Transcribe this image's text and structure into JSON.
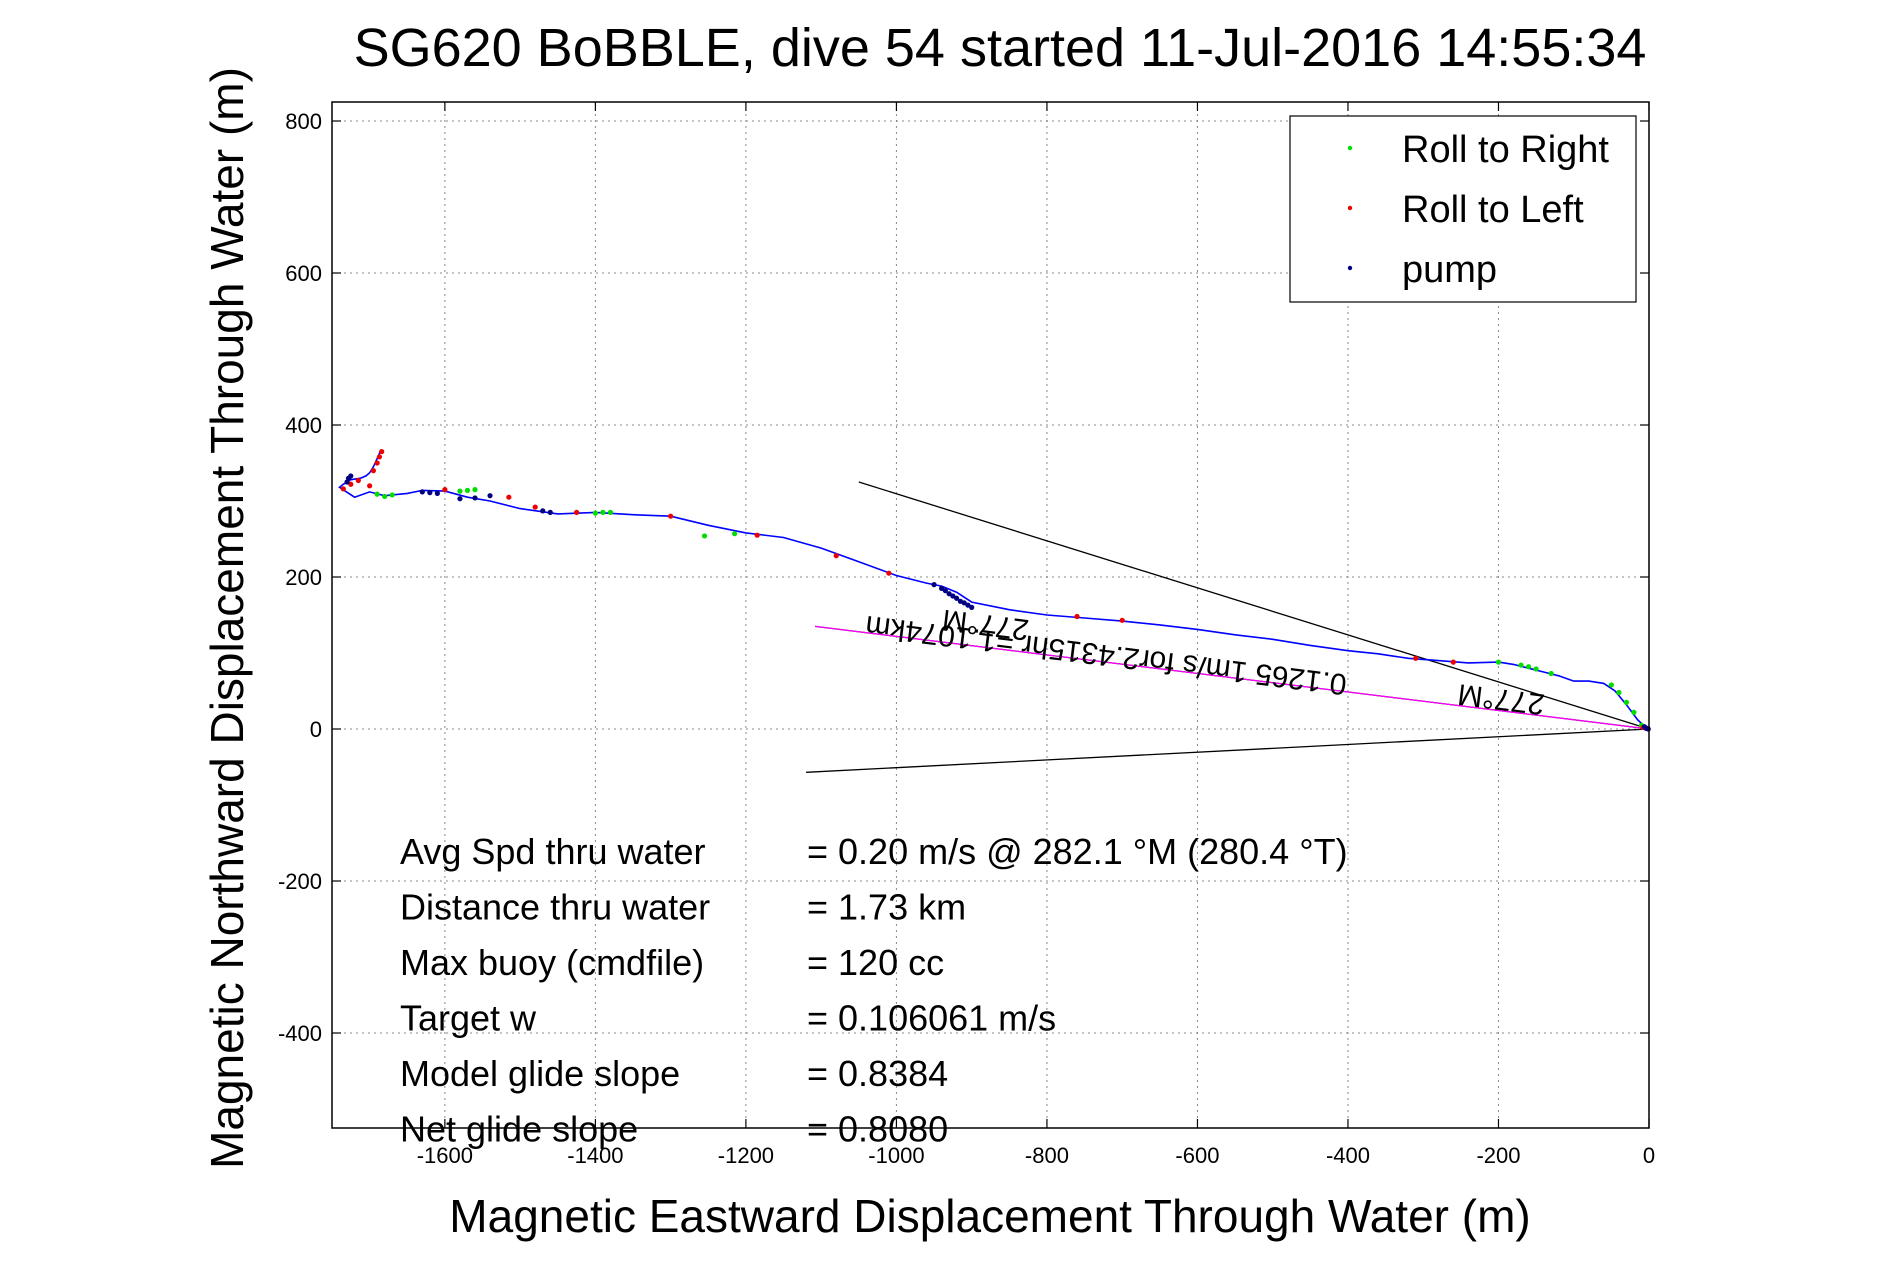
{
  "chart_data": {
    "type": "line",
    "title": "SG620 BoBBLE, dive 54 started 11-Jul-2016 14:55:34",
    "xlabel": "Magnetic Eastward Displacement Through Water (m)",
    "ylabel": "Magnetic Northward Displacement Through Water (m)",
    "xlim": [
      -1750,
      0
    ],
    "ylim": [
      -525,
      825
    ],
    "xticks": [
      -1600,
      -1400,
      -1200,
      -1000,
      -800,
      -600,
      -400,
      -200,
      0
    ],
    "yticks": [
      -400,
      -200,
      0,
      200,
      400,
      600,
      800
    ],
    "grid": true,
    "legend": {
      "placement": "top-right",
      "entries": [
        {
          "label": "Roll to Right",
          "color": "#00dd00"
        },
        {
          "label": "Roll to Left",
          "color": "#ee0000"
        },
        {
          "label": "pump",
          "color": "#000080"
        }
      ]
    },
    "track": {
      "color": "#0000ff",
      "x": [
        0,
        -5,
        -15,
        -30,
        -45,
        -60,
        -80,
        -100,
        -120,
        -140,
        -160,
        -180,
        -200,
        -240,
        -280,
        -320,
        -360,
        -400,
        -450,
        -500,
        -550,
        -600,
        -650,
        -700,
        -750,
        -800,
        -850,
        -900,
        -920,
        -940,
        -960,
        -1000,
        -1050,
        -1100,
        -1150,
        -1200,
        -1250,
        -1300,
        -1350,
        -1400,
        -1450,
        -1500,
        -1540,
        -1570,
        -1600,
        -1630,
        -1650,
        -1680,
        -1700,
        -1720,
        -1740,
        -1735,
        -1725,
        -1712,
        -1705,
        -1700,
        -1695,
        -1690,
        -1685
      ],
      "y": [
        0,
        3,
        12,
        32,
        50,
        60,
        63,
        63,
        70,
        75,
        80,
        85,
        88,
        87,
        90,
        93,
        99,
        103,
        110,
        118,
        124,
        131,
        137,
        142,
        146,
        150,
        157,
        167,
        180,
        188,
        192,
        202,
        220,
        238,
        252,
        258,
        268,
        280,
        282,
        285,
        283,
        290,
        300,
        305,
        313,
        314,
        310,
        307,
        312,
        305,
        318,
        322,
        328,
        330,
        333,
        337,
        345,
        356,
        367
      ]
    },
    "roll_right": {
      "x": [
        -10,
        -20,
        -30,
        -40,
        -50,
        -130,
        -150,
        -160,
        -170,
        -200,
        -1215,
        -1255,
        -1380,
        -1390,
        -1400,
        -1670,
        -1680,
        -1690,
        -1560,
        -1570,
        -1580
      ],
      "y": [
        5,
        22,
        35,
        48,
        58,
        73,
        79,
        82,
        84,
        88,
        257,
        254,
        285,
        285,
        284,
        308,
        306,
        309,
        315,
        314,
        313
      ]
    },
    "roll_left": {
      "x": [
        -3,
        -8,
        -310,
        -260,
        -700,
        -760,
        -1010,
        -1080,
        -1185,
        -1300,
        -1425,
        -1480,
        -1515,
        -1600,
        -1700,
        -1735,
        -1725,
        -1715,
        -1695,
        -1690,
        -1687,
        -1684
      ],
      "y": [
        1,
        2,
        93,
        88,
        143,
        148,
        205,
        228,
        255,
        280,
        285,
        292,
        305,
        315,
        320,
        316,
        322,
        327,
        340,
        350,
        358,
        365
      ]
    },
    "pump": {
      "x": [
        -1,
        -4,
        -6,
        -900,
        -905,
        -910,
        -915,
        -920,
        -925,
        -930,
        -935,
        -940,
        -950,
        -1460,
        -1470,
        -1540,
        -1560,
        -1580,
        -1610,
        -1620,
        -1630,
        -1730,
        -1728,
        -1725
      ],
      "y": [
        0,
        1,
        3,
        160,
        163,
        166,
        168,
        172,
        175,
        178,
        182,
        185,
        190,
        285,
        287,
        307,
        304,
        303,
        310,
        311,
        312,
        325,
        330,
        333
      ]
    },
    "reference_lines": [
      {
        "color": "#000000",
        "x": [
          0,
          -1050
        ],
        "y": [
          0,
          325
        ]
      },
      {
        "color": "#000000",
        "x": [
          0,
          -1120
        ],
        "y": [
          0,
          -57
        ]
      },
      {
        "color": "#000000",
        "x": [
          0,
          -1108
        ],
        "y": [
          0,
          135
        ]
      },
      {
        "color": "#ff00ff",
        "x": [
          0,
          -1108
        ],
        "y": [
          0,
          135
        ]
      }
    ],
    "annotations": [
      {
        "text": "277°M",
        "x": -195,
        "y": 52,
        "rotate_deg": 187
      },
      {
        "text": "0.1265 1m/s for2.4315hr =1.1074km",
        "x": -720,
        "y": 110,
        "rotate_deg": 187
      },
      {
        "text": "277°M",
        "x": -880,
        "y": 150,
        "rotate_deg": 187
      }
    ],
    "stats": [
      {
        "label": "Avg Spd thru water",
        "value": "=  0.20 m/s @ 282.1 °M (280.4 °T)"
      },
      {
        "label": "Distance thru water",
        "value": "=  1.73 km"
      },
      {
        "label": "Max buoy (cmdfile)",
        "value": "= 120 cc"
      },
      {
        "label": "Target w",
        "value": "= 0.106061 m/s"
      },
      {
        "label": "Model glide slope",
        "value": "= 0.8384"
      },
      {
        "label": "Net glide slope",
        "value": "= 0.8080"
      }
    ]
  }
}
